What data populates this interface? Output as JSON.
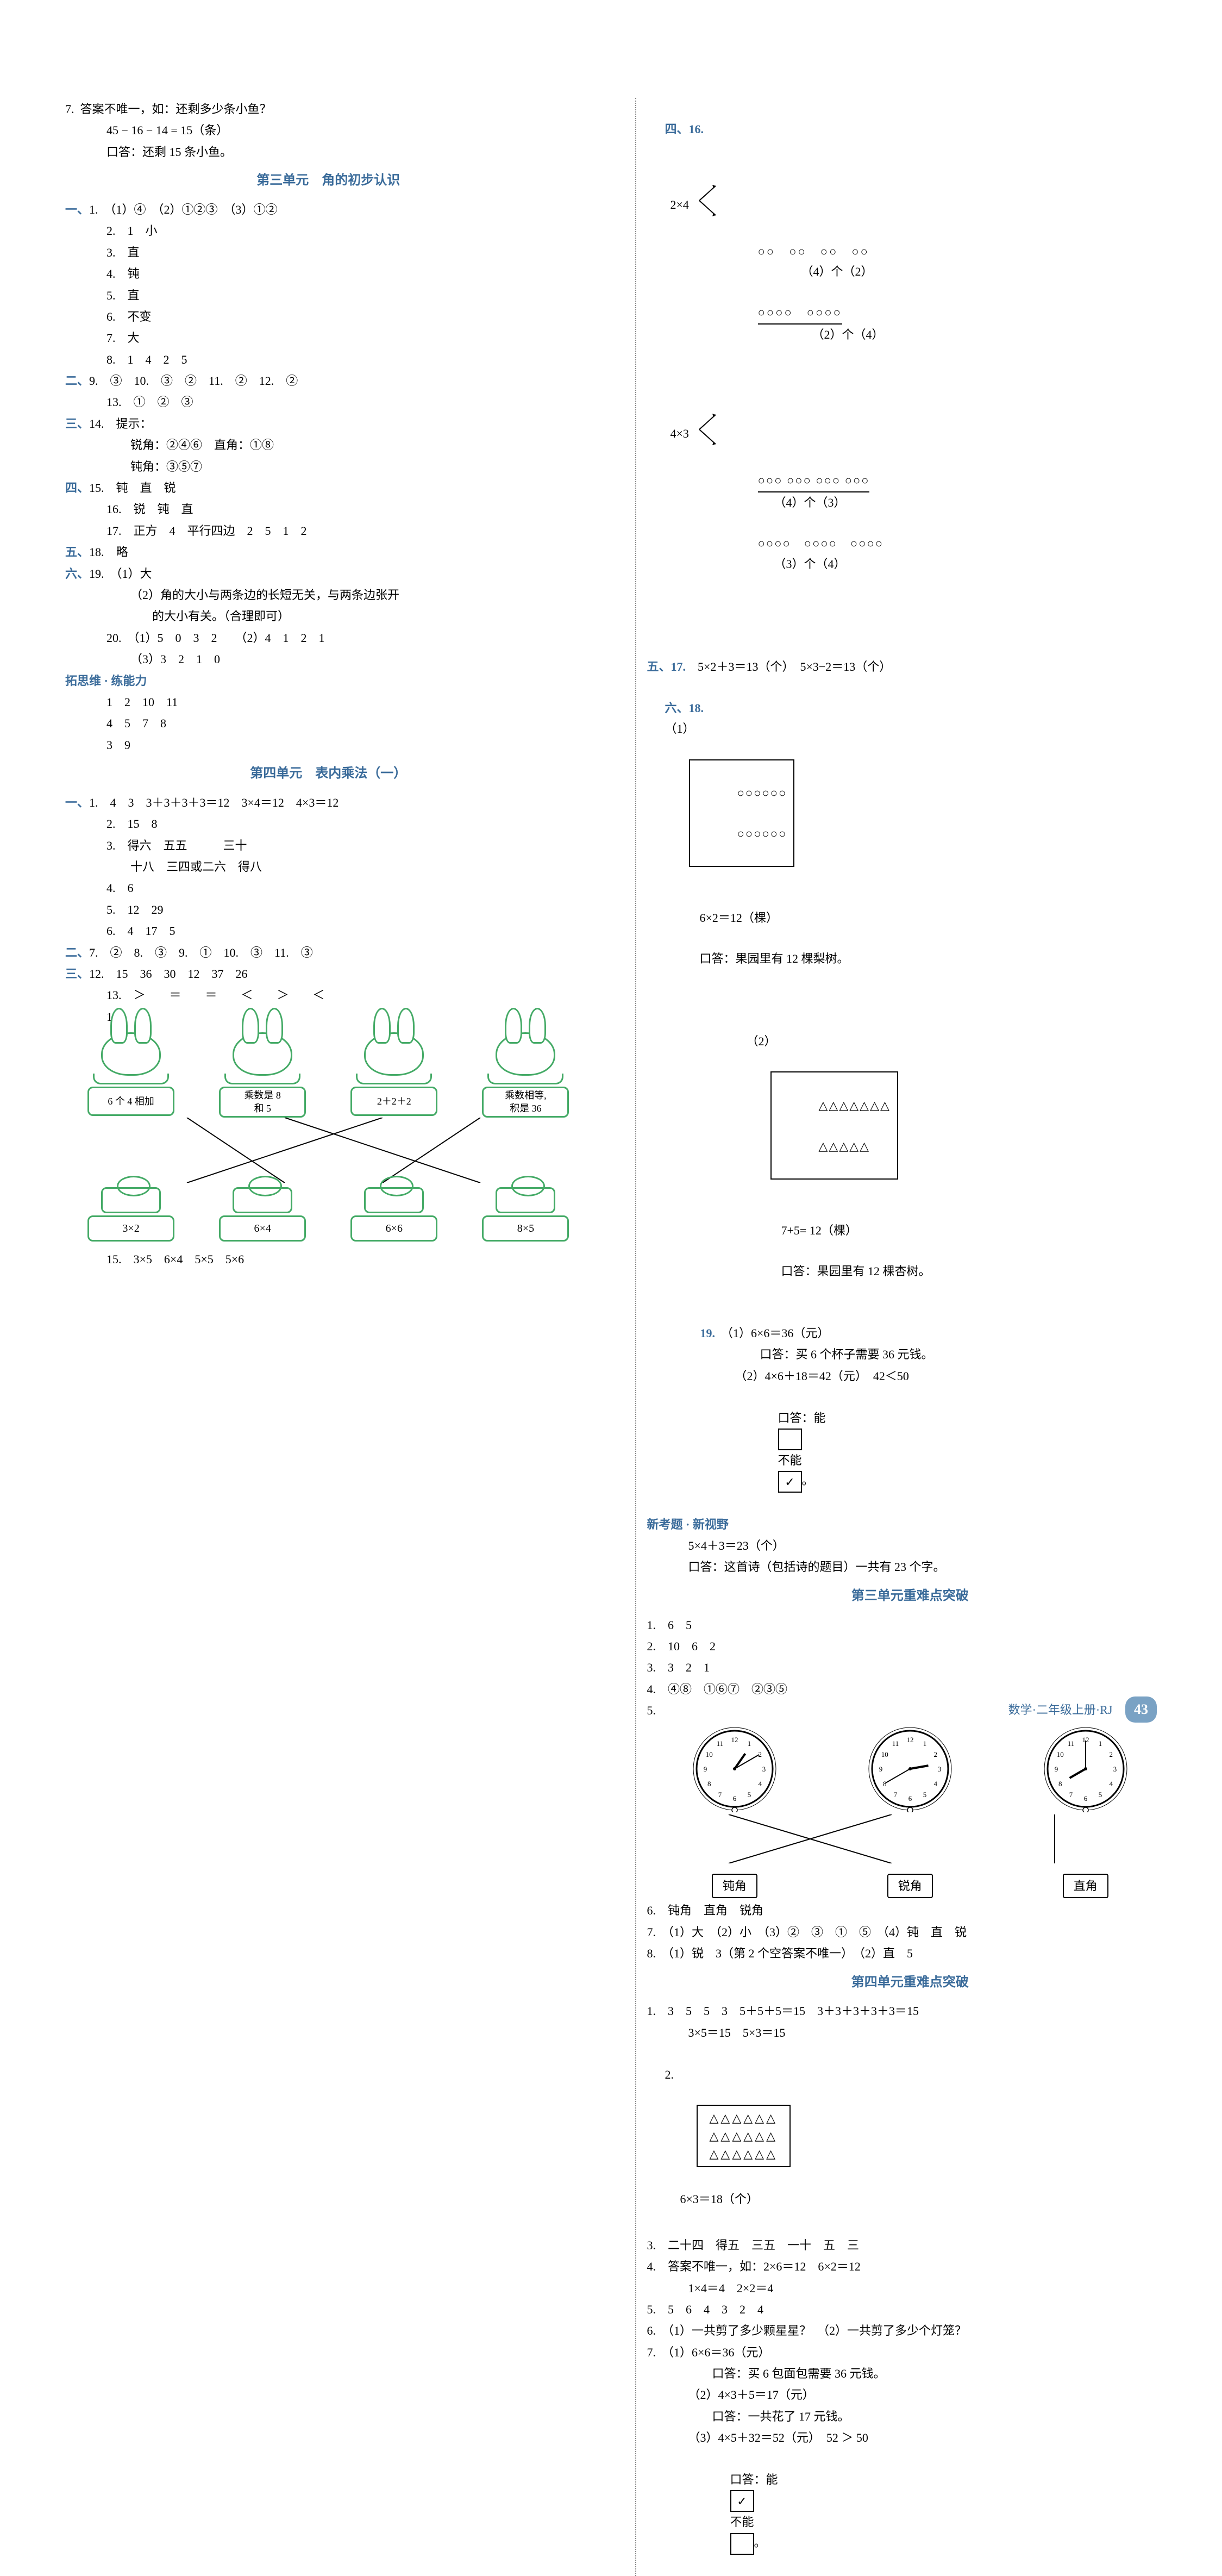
{
  "left": {
    "q7": {
      "l1": "7.  答案不唯一，如：还剩多少条小鱼？",
      "l2": "45 − 16 − 14 = 15（条）",
      "l3": "口答：还剩 15 条小鱼。"
    },
    "unit3_title": "第三单元　角的初步认识",
    "sec1": {
      "h": "一、",
      "l1": "1.　（1）④　（2）①②③　（3）①②",
      "l2": "2.　1　小",
      "l3": "3.　直",
      "l4": "4.　钝",
      "l5": "5.　直",
      "l6": "6.　不变",
      "l7": "7.　大",
      "l8": "8.　1　4　2　5"
    },
    "sec2": {
      "h": "二、",
      "l1": "9.　③　10.　③　②　11.　②　12.　②",
      "l2": "13.　①　②　③"
    },
    "sec3": {
      "h": "三、",
      "l1": "14.　提示：",
      "l2": "锐角：②④⑥　直角：①⑧",
      "l3": "钝角：③⑤⑦"
    },
    "sec4": {
      "h": "四、",
      "l1": "15.　钝　直　锐",
      "l2": "16.　锐　钝　直",
      "l3": "17.　正方　4　平行四边　2　5　1　2"
    },
    "sec5": {
      "h": "五、",
      "l1": "18.　略"
    },
    "sec6": {
      "h": "六、",
      "l1": "19.　（1）大",
      "l2": "（2）角的大小与两条边的长短无关，与两条边张开",
      "l2b": "的大小有关。（合理即可）",
      "l3": "20.　（1）5　0　3　2　　（2）4　1　2　1",
      "l4": "（3）3　2　1　0"
    },
    "ext": {
      "h": "拓思维 · 练能力",
      "l1": "1　2　10　11",
      "l2": "4　5　7　8",
      "l3": "3　9"
    },
    "unit4_title": "第四单元　表内乘法（一）",
    "u4sec1": {
      "h": "一、",
      "l1": "1.　4　3　3＋3＋3＋3＝12　3×4＝12　4×3＝12",
      "l2": "2.　15　8",
      "l3": "3.　得六　五五　　　三十",
      "l3b": "十八　三四或二六　得八",
      "l4": "4.　6",
      "l5": "5.　12　29",
      "l6": "6.　4　17　5"
    },
    "u4sec2": {
      "h": "二、",
      "l1": "7.　②　8.　③　9.　①　10.　③　11.　③"
    },
    "u4sec3": {
      "h": "三、",
      "l1": "12.　15　36　30　12　37　26",
      "l2": "13.　＞　　＝　　＝　　＜　　＞　　＜",
      "l3": "14."
    },
    "rabbits": {
      "labels": [
        "6 个 4 相加",
        "乘数是 8\n和 5",
        "2＋2＋2",
        "乘数相等,\n积是 36"
      ],
      "carrots": [
        "3×2",
        "6×4",
        "6×6",
        "8×5"
      ],
      "connections": [
        [
          0,
          1
        ],
        [
          1,
          3
        ],
        [
          2,
          0
        ],
        [
          3,
          2
        ]
      ]
    },
    "q15": "15.　3×5　6×4　5×5　5×6"
  },
  "right": {
    "sec4_16": {
      "h": "四、16.",
      "lblA": "2×4",
      "row1": "○○　○○　○○　○○",
      "ans1": "（4）个（2）",
      "row2_underlined": "○○○○　○○○○",
      "ans2": "（2）个（4）",
      "lblB": "4×3",
      "row3_underlined": "○○○ ○○○ ○○○ ○○○",
      "ans3": "（4）个（3）",
      "row4": "○○○○　○○○○　○○○○",
      "ans4": "（3）个（4）"
    },
    "sec5_17": {
      "h": "五、17.",
      "l1": "5×2＋3＝13（个）　5×3−2＝13（个）"
    },
    "sec6_18": {
      "h": "六、18.",
      "p1": "（1）",
      "box1a": "○○○○○○",
      "box1b": "○○○○○○",
      "ans1a": "6×2＝12（棵）",
      "ans1b": "口答：果园里有 12 棵梨树。",
      "p2": "（2）",
      "box2a": "△△△△△△△",
      "box2b": "△△△△△",
      "ans2a": "7+5= 12（棵）",
      "ans2b": "口答：果园里有 12 棵杏树。"
    },
    "q19": {
      "h": "19.",
      "l1": "（1）6×6＝36（元）",
      "l2": "口答：买 6 个杯子需要 36 元钱。",
      "l3": "（2）4×6＋18＝42（元）　42＜50",
      "l4a": "口答：能",
      "l4b": "不能",
      "check": "✓"
    },
    "newq": {
      "h": "新考题 · 新视野",
      "l1": "5×4＋3＝23（个）",
      "l2": "口答：这首诗（包括诗的题目）一共有 23 个字。"
    },
    "unit3hard_title": "第三单元重难点突破",
    "hard3": {
      "l1": "1.　6　5",
      "l2": "2.　10　6　2",
      "l3": "3.　3　2　1",
      "l4": "4.　④⑧　①⑥⑦　②③⑤",
      "l5": "5."
    },
    "clocks": {
      "times": [
        [
          1,
          10
        ],
        [
          2,
          40
        ],
        [
          8,
          0
        ]
      ],
      "labels": [
        "钝角",
        "锐角",
        "直角"
      ],
      "map": [
        [
          0,
          1
        ],
        [
          1,
          0
        ],
        [
          2,
          2
        ]
      ]
    },
    "hard3b": {
      "l6": "6.　钝角　直角　锐角",
      "l7": "7.　（1）大　（2）小　（3）②　③　①　⑤　（4）钝　直　锐",
      "l8": "8.　（1）锐　3（第 2 个空答案不唯一）　（2）直　5"
    },
    "unit4hard_title": "第四单元重难点突破",
    "hard4": {
      "l1": "1.　3　5　5　3　5＋5＋5＝15　3＋3＋3＋3＋3＝15",
      "l1b": "3×5＝15　5×3＝15",
      "l2": "2.",
      "tri_rows": [
        "△△△△△△",
        "△△△△△△",
        "△△△△△△"
      ],
      "tri_ans": "6×3＝18（个）",
      "l3": "3.　二十四　得五　三五　一十　五　三",
      "l4a": "4.　答案不唯一，如：2×6＝12　6×2＝12",
      "l4b": "1×4＝4　2×2＝4",
      "l5": "5.　5　6　4　3　2　4",
      "l6": "6.　（1）一共剪了多少颗星星？　（2）一共剪了多少个灯笼？",
      "l7a": "7.　（1）6×6＝36（元）",
      "l7b": "口答：买 6 包面包需要 36 元钱。",
      "l7c": "（2）4×3＋5＝17（元）",
      "l7d": "口答：一共花了 17 元钱。",
      "l7e": "（3）4×5＋32＝52（元）　52 ＞ 50",
      "l7f_a": "口答：能",
      "l7f_b": "不能",
      "check": "✓"
    }
  },
  "footer": {
    "text": "数学·二年级上册·RJ",
    "page": "43"
  },
  "colors": {
    "accent": "#3a6b9a",
    "green": "#4a9b5a"
  }
}
